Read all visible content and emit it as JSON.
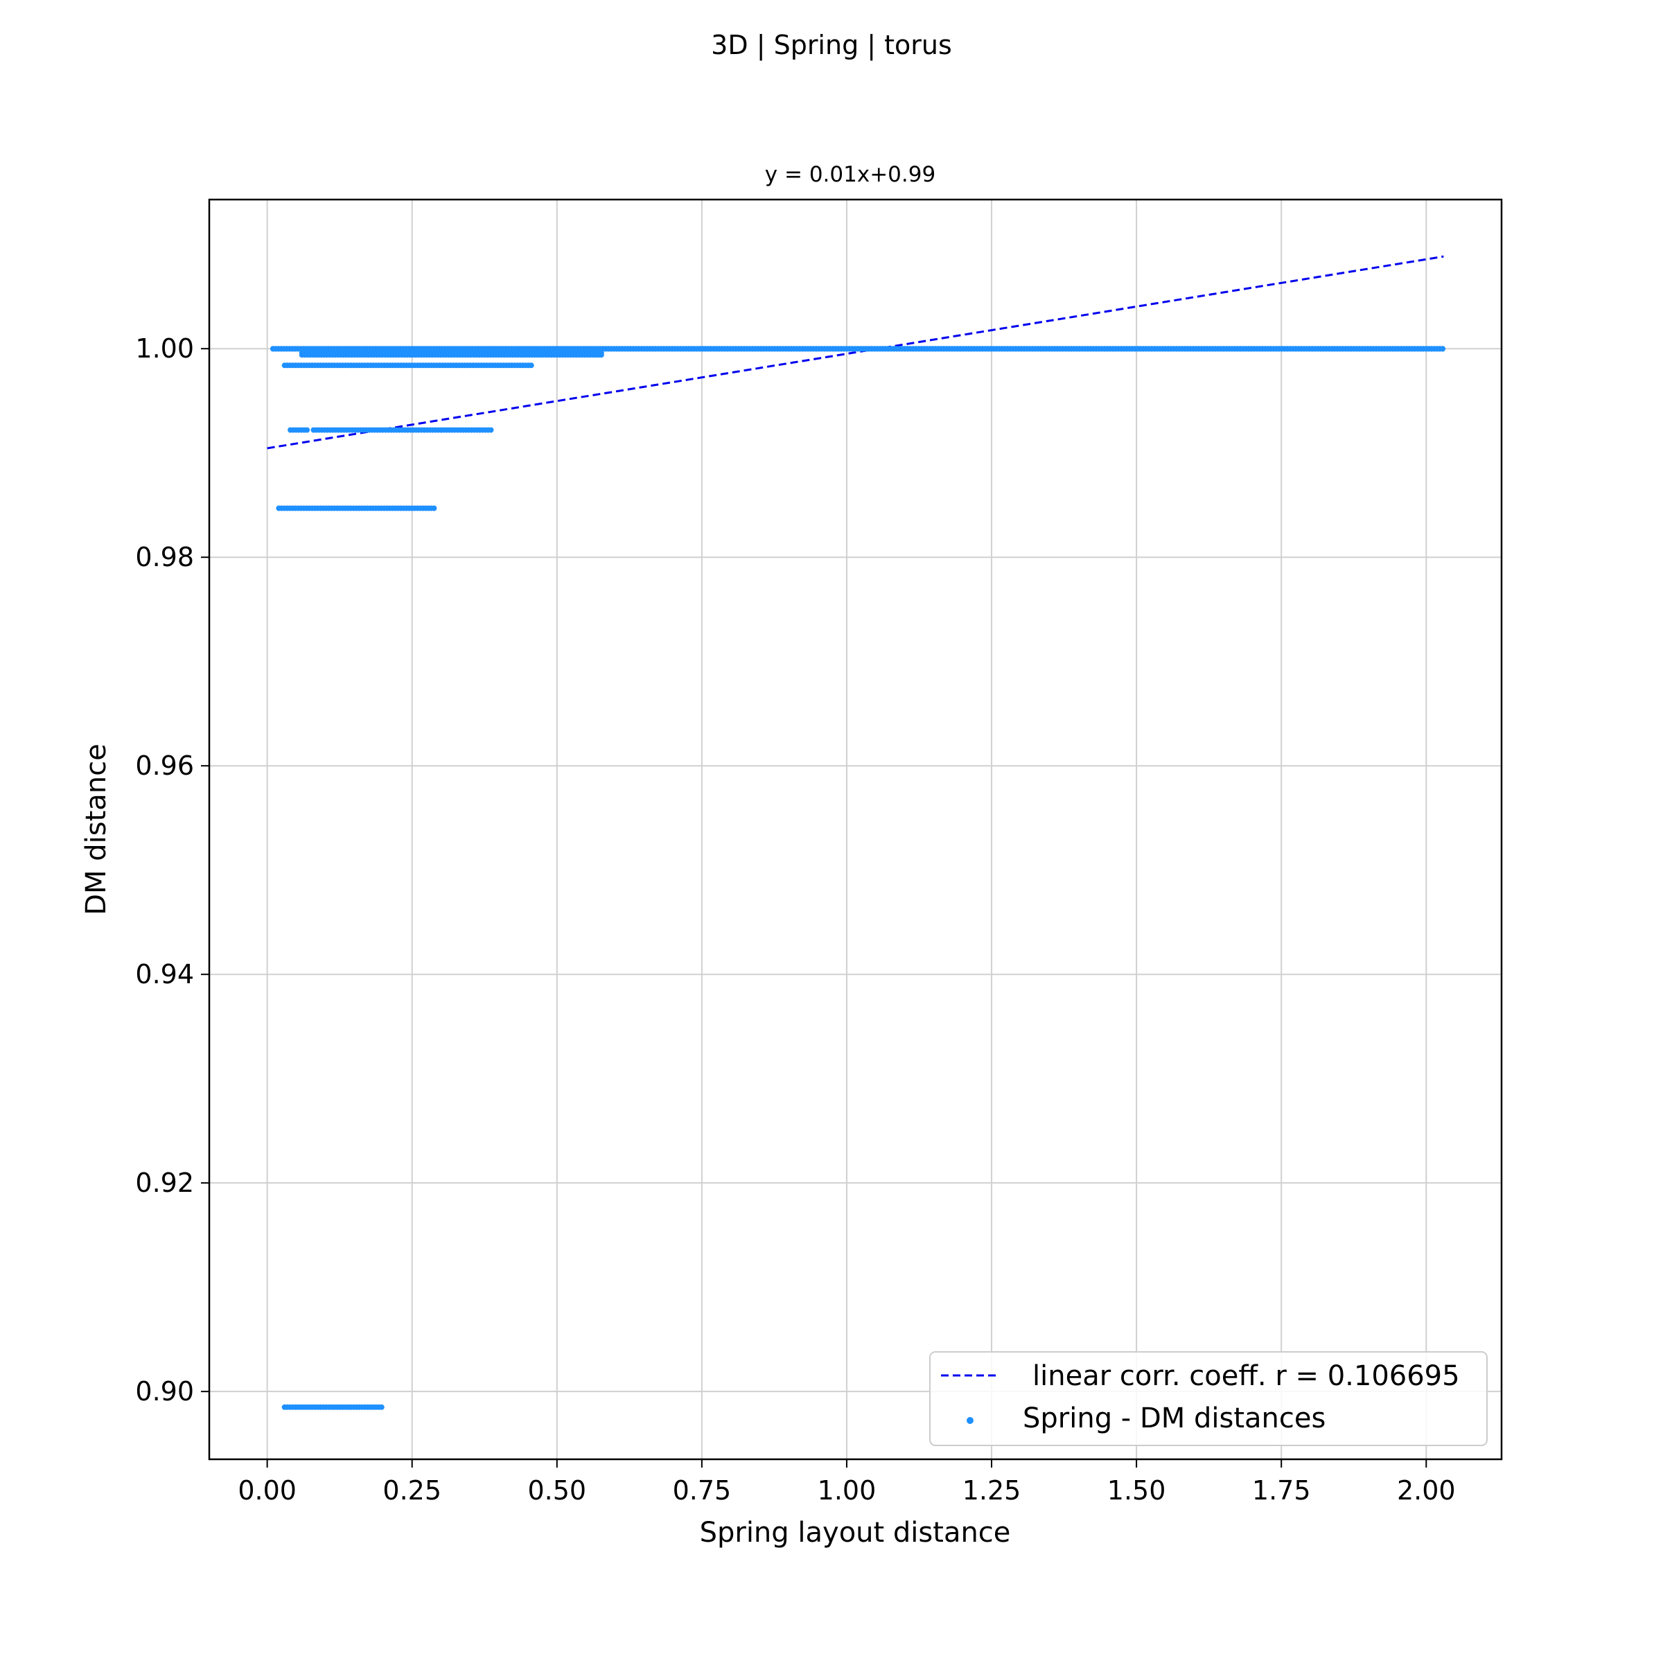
{
  "chart_data": {
    "type": "scatter",
    "title": "3D | Spring | torus",
    "subtitle": "y = 0.01x+0.99",
    "xlabel": "Spring layout distance",
    "ylabel": "DM distance",
    "xlim": [
      -0.1,
      2.13
    ],
    "ylim": [
      0.8935,
      1.0143
    ],
    "x_ticks": [
      0.0,
      0.25,
      0.5,
      0.75,
      1.0,
      1.25,
      1.5,
      1.75,
      2.0
    ],
    "x_tick_labels": [
      "0.00",
      "0.25",
      "0.50",
      "0.75",
      "1.00",
      "1.25",
      "1.50",
      "1.75",
      "2.00"
    ],
    "y_ticks": [
      0.9,
      0.92,
      0.94,
      0.96,
      0.98,
      1.0
    ],
    "y_tick_labels": [
      "0.90",
      "0.92",
      "0.94",
      "0.96",
      "0.98",
      "1.00"
    ],
    "grid": true,
    "legend_position": "lower-right",
    "series": [
      {
        "name": "Spring - DM distances",
        "kind": "scatter",
        "color": "#1e90ff",
        "clusters": [
          {
            "y": 1.0,
            "x_range": [
              0.01,
              2.03
            ]
          },
          {
            "y": 0.99998,
            "x_range": [
              0.01,
              2.03
            ]
          },
          {
            "y": 0.9996,
            "x_range": [
              0.06,
              0.58
            ]
          },
          {
            "y": 0.9994,
            "x_range": [
              0.06,
              0.58
            ]
          },
          {
            "y": 0.9984,
            "x_range": [
              0.03,
              0.46
            ]
          },
          {
            "y": 0.9922,
            "x_range": [
              0.04,
              0.07
            ]
          },
          {
            "y": 0.9922,
            "x_range": [
              0.08,
              0.39
            ]
          },
          {
            "y": 0.9847,
            "x_range": [
              0.02,
              0.29
            ]
          },
          {
            "y": 0.8985,
            "x_range": [
              0.03,
              0.2
            ]
          }
        ]
      },
      {
        "name": "linear corr. coeff. r = 0.106695",
        "kind": "line",
        "color": "#0000ee",
        "style": "dashed",
        "slope": 0.00906,
        "intercept": 0.99045,
        "x_range": [
          0.0,
          2.03
        ]
      }
    ]
  }
}
